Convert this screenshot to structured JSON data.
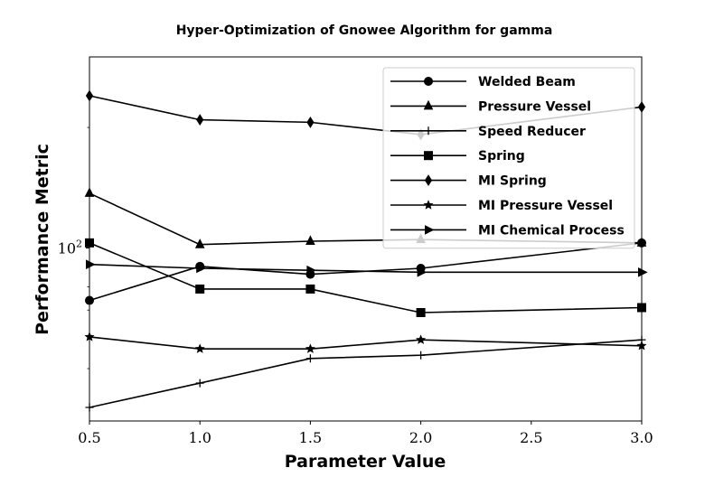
{
  "chart_data": {
    "type": "line",
    "title": "Hyper-Optimization of Gnowee Algorithm for gamma",
    "xlabel": "Parameter Value",
    "ylabel": "Performance Metric",
    "yscale": "log",
    "xlim": [
      0.5,
      3.0
    ],
    "ylim": [
      37,
      300
    ],
    "x": [
      0.5,
      1.0,
      1.5,
      2.0,
      3.0
    ],
    "x_ticks": [
      0.5,
      1.0,
      1.5,
      2.0,
      2.5,
      3.0
    ],
    "x_tick_labels": [
      "0.5",
      "1.0",
      "1.5",
      "2.0",
      "2.5",
      "3.0"
    ],
    "y_ticks": [
      100
    ],
    "y_tick_labels": [
      "10^2"
    ],
    "grid": false,
    "legend_position": "top-right",
    "line_color": "#000000",
    "series": [
      {
        "name": "Welded Beam",
        "marker": "circle",
        "values": [
          74,
          90,
          86,
          89,
          103
        ]
      },
      {
        "name": "Pressure Vessel",
        "marker": "triangle-up",
        "values": [
          137,
          102,
          104,
          105,
          103
        ]
      },
      {
        "name": "Speed Reducer",
        "marker": "plus",
        "values": [
          40,
          46,
          53,
          54,
          59
        ]
      },
      {
        "name": "Spring",
        "marker": "square",
        "values": [
          103,
          79,
          79,
          69,
          71
        ]
      },
      {
        "name": "MI Spring",
        "marker": "diamond",
        "values": [
          240,
          209,
          206,
          192,
          225
        ]
      },
      {
        "name": "MI Pressure Vessel",
        "marker": "star",
        "values": [
          60,
          56,
          56,
          59,
          57
        ]
      },
      {
        "name": "MI Chemical Process",
        "marker": "triangle-right",
        "values": [
          91,
          89,
          88,
          87,
          87
        ]
      }
    ]
  }
}
